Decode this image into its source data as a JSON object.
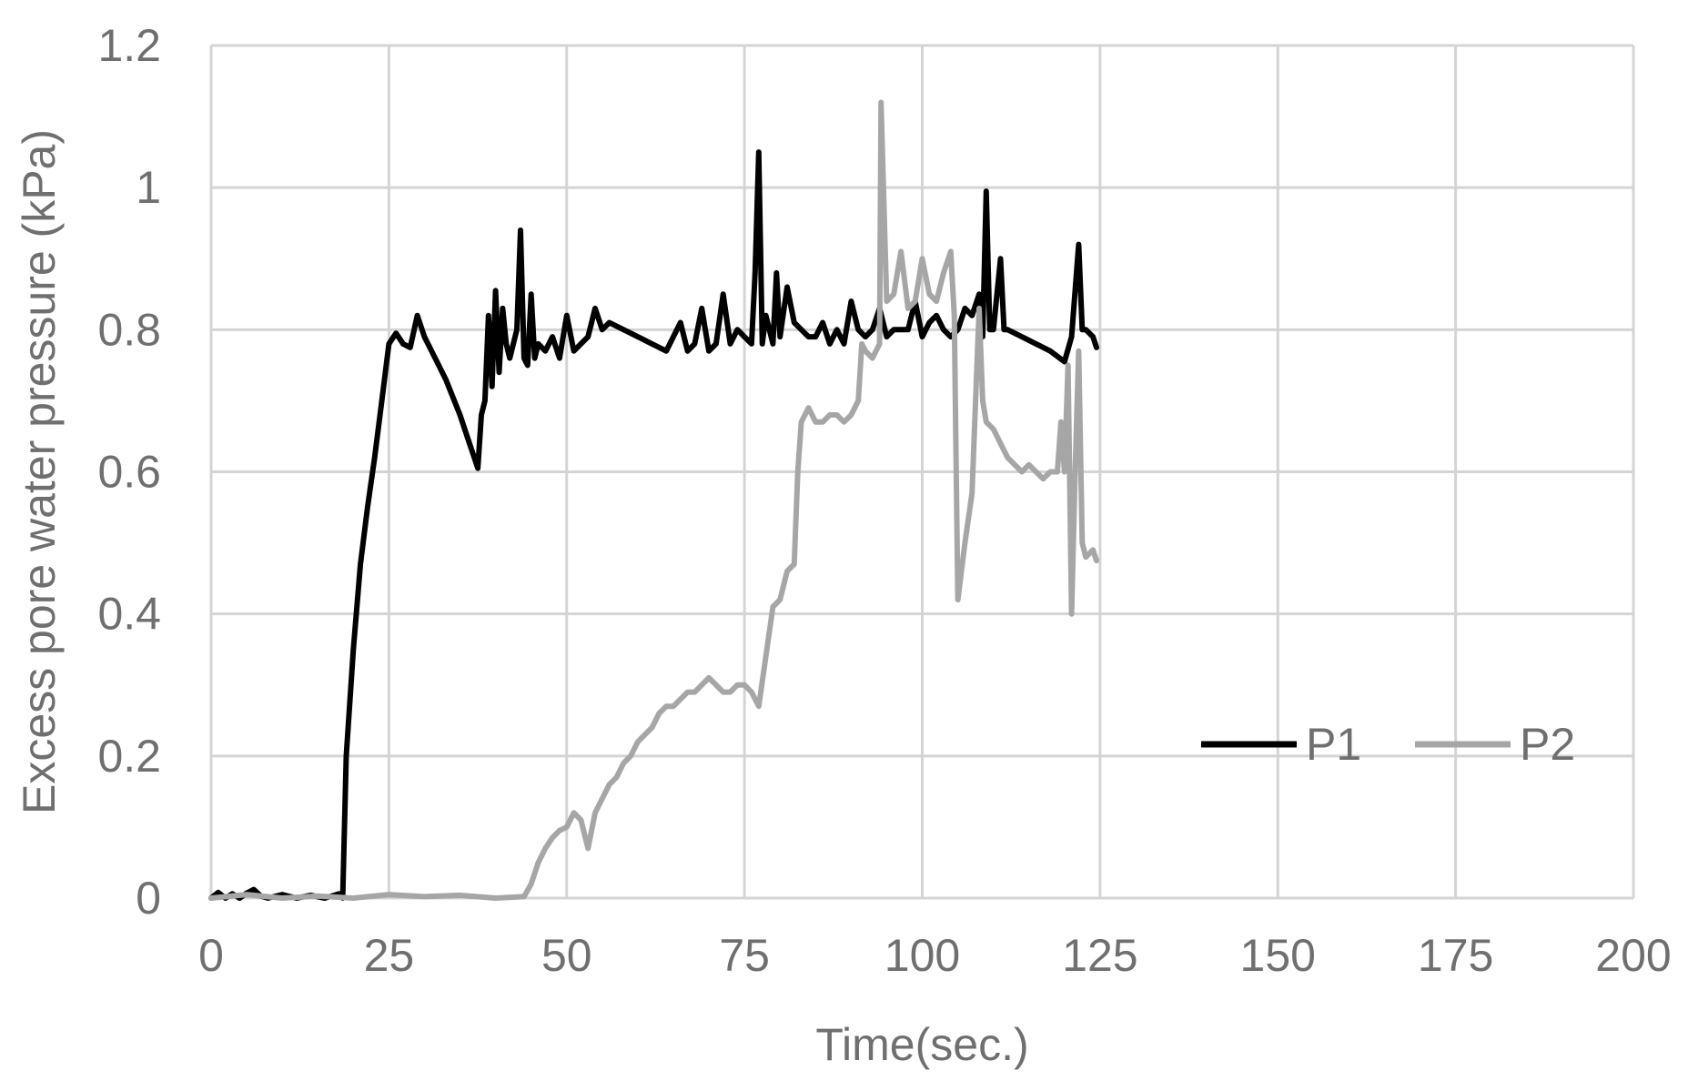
{
  "chart_data": {
    "type": "line",
    "xlabel": "Time(sec.)",
    "ylabel": "Excess pore water pressure (kPa)",
    "xlim": [
      0,
      200
    ],
    "ylim": [
      0,
      1.2
    ],
    "x_ticks": [
      0,
      25,
      50,
      75,
      100,
      125,
      150,
      175,
      200
    ],
    "y_ticks": [
      0,
      0.2,
      0.4,
      0.6,
      0.8,
      1,
      1.2
    ],
    "x_tick_labels": [
      "0",
      "25",
      "50",
      "75",
      "100",
      "125",
      "150",
      "175",
      "200"
    ],
    "y_tick_labels": [
      "0",
      "0.2",
      "0.4",
      "0.6",
      "0.8",
      "1",
      "1.2"
    ],
    "grid": true,
    "legend_position": "right",
    "series": [
      {
        "name": "P1",
        "color": "#000000",
        "points": [
          [
            0,
            0
          ],
          [
            1,
            0.008
          ],
          [
            2,
            0
          ],
          [
            3,
            0.006
          ],
          [
            4,
            0
          ],
          [
            5,
            0.007
          ],
          [
            6,
            0.012
          ],
          [
            7,
            0.003
          ],
          [
            8,
            0
          ],
          [
            10,
            0.005
          ],
          [
            12,
            0
          ],
          [
            14,
            0.004
          ],
          [
            16,
            0
          ],
          [
            18,
            0.006
          ],
          [
            18.5,
            0.0
          ],
          [
            19,
            0.2
          ],
          [
            20,
            0.35
          ],
          [
            21,
            0.47
          ],
          [
            22,
            0.55
          ],
          [
            23,
            0.62
          ],
          [
            24,
            0.7
          ],
          [
            25,
            0.78
          ],
          [
            26,
            0.795
          ],
          [
            27,
            0.78
          ],
          [
            28,
            0.775
          ],
          [
            29,
            0.82
          ],
          [
            30,
            0.79
          ],
          [
            31,
            0.77
          ],
          [
            33,
            0.73
          ],
          [
            35,
            0.68
          ],
          [
            36,
            0.65
          ],
          [
            37,
            0.62
          ],
          [
            37.5,
            0.605
          ],
          [
            38,
            0.68
          ],
          [
            38.5,
            0.7
          ],
          [
            39,
            0.82
          ],
          [
            39.5,
            0.72
          ],
          [
            40,
            0.855
          ],
          [
            40.5,
            0.74
          ],
          [
            41,
            0.83
          ],
          [
            41.5,
            0.78
          ],
          [
            42,
            0.76
          ],
          [
            43,
            0.8
          ],
          [
            43.5,
            0.94
          ],
          [
            44,
            0.76
          ],
          [
            44.5,
            0.75
          ],
          [
            45,
            0.85
          ],
          [
            45.5,
            0.76
          ],
          [
            46,
            0.78
          ],
          [
            47,
            0.77
          ],
          [
            48,
            0.79
          ],
          [
            49,
            0.76
          ],
          [
            50,
            0.82
          ],
          [
            51,
            0.77
          ],
          [
            52,
            0.78
          ],
          [
            53,
            0.79
          ],
          [
            54,
            0.83
          ],
          [
            55,
            0.8
          ],
          [
            56,
            0.81
          ],
          [
            58,
            0.8
          ],
          [
            60,
            0.79
          ],
          [
            62,
            0.78
          ],
          [
            64,
            0.77
          ],
          [
            65,
            0.79
          ],
          [
            66,
            0.81
          ],
          [
            67,
            0.77
          ],
          [
            68,
            0.78
          ],
          [
            69,
            0.83
          ],
          [
            70,
            0.77
          ],
          [
            71,
            0.78
          ],
          [
            72,
            0.85
          ],
          [
            73,
            0.78
          ],
          [
            74,
            0.8
          ],
          [
            75,
            0.79
          ],
          [
            76,
            0.78
          ],
          [
            76.5,
            0.88
          ],
          [
            77,
            1.05
          ],
          [
            77.5,
            0.78
          ],
          [
            78,
            0.82
          ],
          [
            79,
            0.78
          ],
          [
            79.5,
            0.88
          ],
          [
            80,
            0.79
          ],
          [
            81,
            0.86
          ],
          [
            82,
            0.81
          ],
          [
            83,
            0.8
          ],
          [
            84,
            0.79
          ],
          [
            85,
            0.79
          ],
          [
            86,
            0.81
          ],
          [
            87,
            0.78
          ],
          [
            88,
            0.8
          ],
          [
            89,
            0.78
          ],
          [
            90,
            0.84
          ],
          [
            91,
            0.8
          ],
          [
            92,
            0.79
          ],
          [
            93,
            0.8
          ],
          [
            94,
            0.83
          ],
          [
            95,
            0.79
          ],
          [
            96,
            0.8
          ],
          [
            97,
            0.8
          ],
          [
            98,
            0.8
          ],
          [
            99,
            0.84
          ],
          [
            100,
            0.79
          ],
          [
            101,
            0.81
          ],
          [
            102,
            0.82
          ],
          [
            103,
            0.8
          ],
          [
            104,
            0.79
          ],
          [
            105,
            0.8
          ],
          [
            106,
            0.83
          ],
          [
            107,
            0.82
          ],
          [
            108,
            0.85
          ],
          [
            108.5,
            0.79
          ],
          [
            109,
            0.995
          ],
          [
            109.5,
            0.8
          ],
          [
            110,
            0.8
          ],
          [
            111,
            0.9
          ],
          [
            111.5,
            0.8
          ],
          [
            112,
            0.8
          ],
          [
            114,
            0.79
          ],
          [
            116,
            0.78
          ],
          [
            118,
            0.77
          ],
          [
            120,
            0.755
          ],
          [
            121,
            0.79
          ],
          [
            122,
            0.92
          ],
          [
            122.5,
            0.8
          ],
          [
            123,
            0.8
          ],
          [
            124,
            0.79
          ],
          [
            124.5,
            0.775
          ]
        ]
      },
      {
        "name": "P2",
        "color": "#a6a6a6",
        "points": [
          [
            0,
            0
          ],
          [
            5,
            0.005
          ],
          [
            10,
            0
          ],
          [
            15,
            0.003
          ],
          [
            20,
            0
          ],
          [
            25,
            0.005
          ],
          [
            30,
            0.002
          ],
          [
            35,
            0.004
          ],
          [
            40,
            0
          ],
          [
            44,
            0.002
          ],
          [
            45,
            0.02
          ],
          [
            46,
            0.05
          ],
          [
            47,
            0.07
          ],
          [
            48,
            0.085
          ],
          [
            49,
            0.095
          ],
          [
            50,
            0.1
          ],
          [
            51,
            0.12
          ],
          [
            52,
            0.11
          ],
          [
            53,
            0.07
          ],
          [
            54,
            0.12
          ],
          [
            55,
            0.14
          ],
          [
            56,
            0.16
          ],
          [
            57,
            0.17
          ],
          [
            58,
            0.19
          ],
          [
            59,
            0.2
          ],
          [
            60,
            0.22
          ],
          [
            61,
            0.23
          ],
          [
            62,
            0.24
          ],
          [
            63,
            0.26
          ],
          [
            64,
            0.27
          ],
          [
            65,
            0.27
          ],
          [
            66,
            0.28
          ],
          [
            67,
            0.29
          ],
          [
            68,
            0.29
          ],
          [
            69,
            0.3
          ],
          [
            70,
            0.31
          ],
          [
            71,
            0.3
          ],
          [
            72,
            0.29
          ],
          [
            73,
            0.29
          ],
          [
            74,
            0.3
          ],
          [
            75,
            0.3
          ],
          [
            76,
            0.29
          ],
          [
            77,
            0.27
          ],
          [
            78,
            0.34
          ],
          [
            79,
            0.41
          ],
          [
            80,
            0.42
          ],
          [
            81,
            0.46
          ],
          [
            82,
            0.47
          ],
          [
            82.5,
            0.6
          ],
          [
            83,
            0.67
          ],
          [
            84,
            0.69
          ],
          [
            85,
            0.67
          ],
          [
            86,
            0.67
          ],
          [
            87,
            0.68
          ],
          [
            88,
            0.68
          ],
          [
            89,
            0.67
          ],
          [
            90,
            0.68
          ],
          [
            91,
            0.7
          ],
          [
            91.5,
            0.78
          ],
          [
            92,
            0.77
          ],
          [
            93,
            0.76
          ],
          [
            94,
            0.78
          ],
          [
            94.2,
            1.12
          ],
          [
            95,
            0.84
          ],
          [
            96,
            0.85
          ],
          [
            97,
            0.91
          ],
          [
            98,
            0.83
          ],
          [
            99,
            0.84
          ],
          [
            100,
            0.9
          ],
          [
            101,
            0.85
          ],
          [
            102,
            0.84
          ],
          [
            103,
            0.88
          ],
          [
            104,
            0.91
          ],
          [
            104.5,
            0.82
          ],
          [
            105,
            0.42
          ],
          [
            106,
            0.5
          ],
          [
            107,
            0.57
          ],
          [
            108,
            0.83
          ],
          [
            108.5,
            0.7
          ],
          [
            109,
            0.67
          ],
          [
            110,
            0.66
          ],
          [
            111,
            0.64
          ],
          [
            112,
            0.62
          ],
          [
            113,
            0.61
          ],
          [
            114,
            0.6
          ],
          [
            115,
            0.61
          ],
          [
            116,
            0.6
          ],
          [
            117,
            0.59
          ],
          [
            118,
            0.6
          ],
          [
            119,
            0.6
          ],
          [
            119.5,
            0.67
          ],
          [
            120,
            0.6
          ],
          [
            120.5,
            0.75
          ],
          [
            121,
            0.4
          ],
          [
            121.5,
            0.6
          ],
          [
            122,
            0.77
          ],
          [
            122.5,
            0.5
          ],
          [
            123,
            0.48
          ],
          [
            124,
            0.49
          ],
          [
            124.5,
            0.475
          ]
        ]
      }
    ]
  }
}
